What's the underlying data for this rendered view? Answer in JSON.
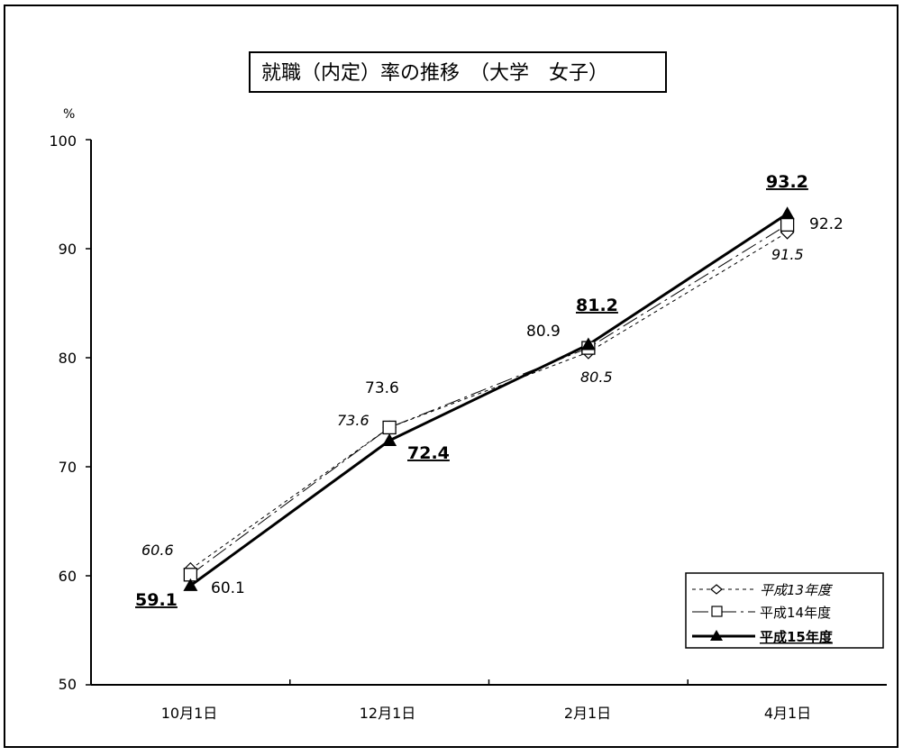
{
  "chart_data": {
    "type": "line",
    "title": "就職（内定）率の推移　（大学　女子）",
    "ylabel": "%",
    "categories": [
      "10月1日",
      "12月1日",
      "2月1日",
      "4月1日"
    ],
    "y_ticks": [
      "50",
      "60",
      "70",
      "80",
      "90",
      "100"
    ],
    "ylim": [
      50,
      100
    ],
    "legend_position": "bottom-right",
    "series": [
      {
        "name": "平成13年度",
        "values": [
          60.6,
          73.6,
          80.5,
          91.5
        ],
        "labels": [
          "60.6",
          "73.6",
          "80.5",
          "91.5"
        ],
        "marker": "diamond",
        "line": "dashed",
        "label_style": "italic"
      },
      {
        "name": "平成14年度",
        "values": [
          60.1,
          73.6,
          80.9,
          92.2
        ],
        "labels": [
          "60.1",
          "73.6",
          "80.9",
          "92.2"
        ],
        "marker": "square",
        "line": "thin-dashdot",
        "label_style": "plain"
      },
      {
        "name": "平成15年度",
        "values": [
          59.1,
          72.4,
          81.2,
          93.2
        ],
        "labels": [
          "59.1",
          "72.4",
          "81.2",
          "93.2"
        ],
        "marker": "triangle",
        "line": "bold",
        "label_style": "bold-underline"
      }
    ],
    "legend": {
      "s0": "平成13年度",
      "s1": "平成14年度",
      "s2": "平成15年度"
    }
  }
}
